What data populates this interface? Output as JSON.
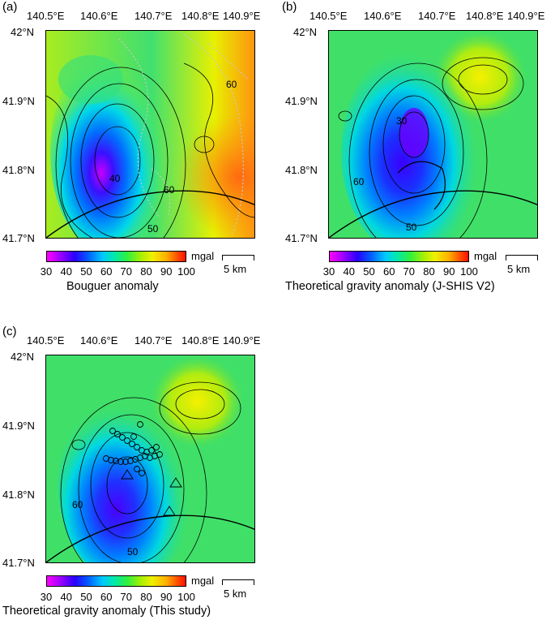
{
  "panels": [
    {
      "id": "a",
      "label": "(a)",
      "caption": "Bouguer anomaly",
      "lon_ticks": [
        "140.5°E",
        "140.6°E",
        "140.7°E",
        "140.8°E",
        "140.9°E"
      ],
      "lat_ticks": [
        "42°N",
        "41.9°N",
        "41.8°N",
        "41.7°N"
      ],
      "contour_labels": [
        "60",
        "50",
        "40",
        "60"
      ],
      "colorbar_ticks": [
        "30",
        "40",
        "50",
        "60",
        "70",
        "80",
        "90",
        "100"
      ],
      "colorbar_unit": "mgal",
      "scale_label": "5 km"
    },
    {
      "id": "b",
      "label": "(b)",
      "caption": "Theoretical gravity anomaly (J-SHIS V2)",
      "lon_ticks": [
        "140.5°E",
        "140.6°E",
        "140.7°E",
        "140.8°E",
        "140.9°E"
      ],
      "lat_ticks": [
        "42°N",
        "41.9°N",
        "41.8°N",
        "41.7°N"
      ],
      "contour_labels": [
        "30",
        "60",
        "50"
      ],
      "colorbar_ticks": [
        "30",
        "40",
        "50",
        "60",
        "70",
        "80",
        "90",
        "100"
      ],
      "colorbar_unit": "mgal",
      "scale_label": "5 km"
    },
    {
      "id": "c",
      "label": "(c)",
      "caption": "Theoretical gravity anomaly (This study)",
      "lon_ticks": [
        "140.5°E",
        "140.6°E",
        "140.7°E",
        "140.8°E",
        "140.9°E"
      ],
      "lat_ticks": [
        "42°N",
        "41.9°N",
        "41.8°N",
        "41.7°N"
      ],
      "contour_labels": [
        "60",
        "50"
      ],
      "colorbar_ticks": [
        "30",
        "40",
        "50",
        "60",
        "70",
        "80",
        "90",
        "100"
      ],
      "colorbar_unit": "mgal",
      "scale_label": "5 km"
    }
  ],
  "colors": {
    "colormap": [
      "#ff00ff",
      "#2a00ff",
      "#00c8ff",
      "#30f040",
      "#f0f000",
      "#ff5000",
      "#ff1000"
    ],
    "contour": "#000000",
    "stations": "#c8c8c8"
  }
}
